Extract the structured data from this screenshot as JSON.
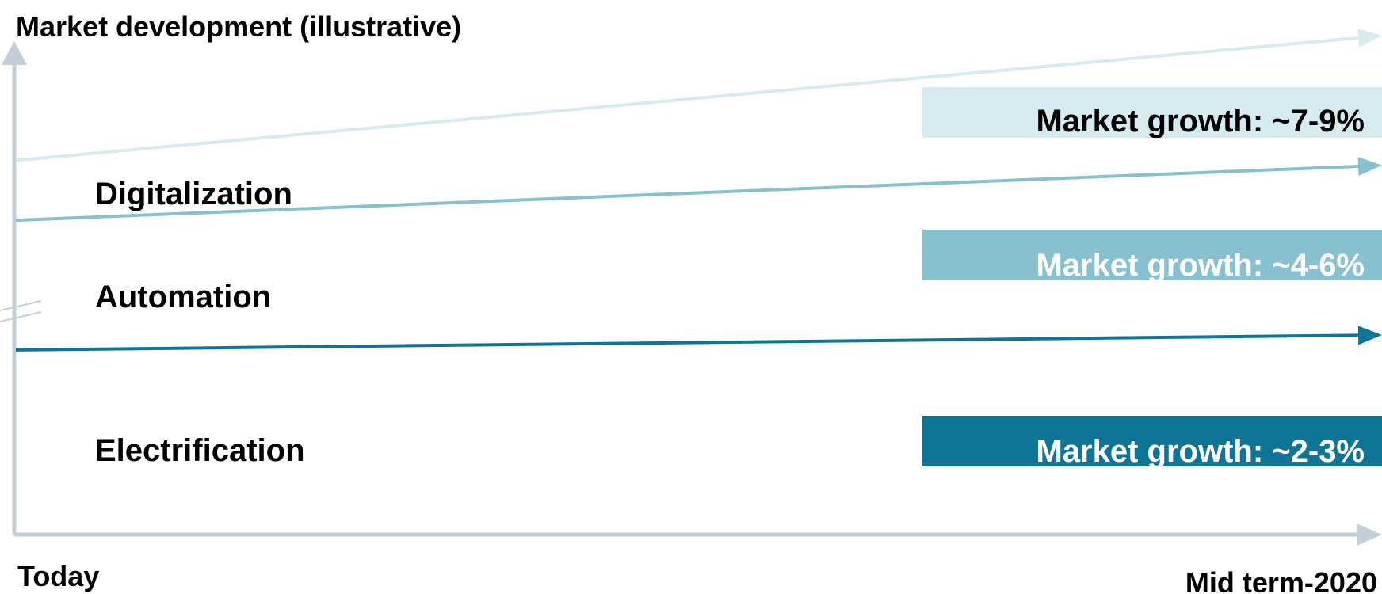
{
  "chart_data": {
    "type": "line",
    "title": "Market development (illustrative)",
    "x_start_label": "Today",
    "x_end_label": "Mid term-2020",
    "y_axis_break": true,
    "grid": false,
    "series": [
      {
        "name": "Digitalization",
        "growth_label": "Market growth: ~7-9%",
        "start_value": 0.75,
        "end_value": 1.0,
        "color": "#d6ebef",
        "label_box_color": "#d6ebef",
        "label_text_color": "#000000"
      },
      {
        "name": "Automation",
        "growth_label": "Market growth: ~4-6%",
        "start_value": 0.63,
        "end_value": 0.74,
        "color": "#87c1d0",
        "label_box_color": "#87c1d0",
        "label_text_color": "#ffffff"
      },
      {
        "name": "Electrification",
        "growth_label": "Market growth: ~2-3%",
        "start_value": 0.37,
        "end_value": 0.4,
        "color": "#0e7596",
        "label_box_color": "#0e7596",
        "label_text_color": "#ffffff"
      }
    ],
    "axis_color": "#c2cfd9"
  }
}
